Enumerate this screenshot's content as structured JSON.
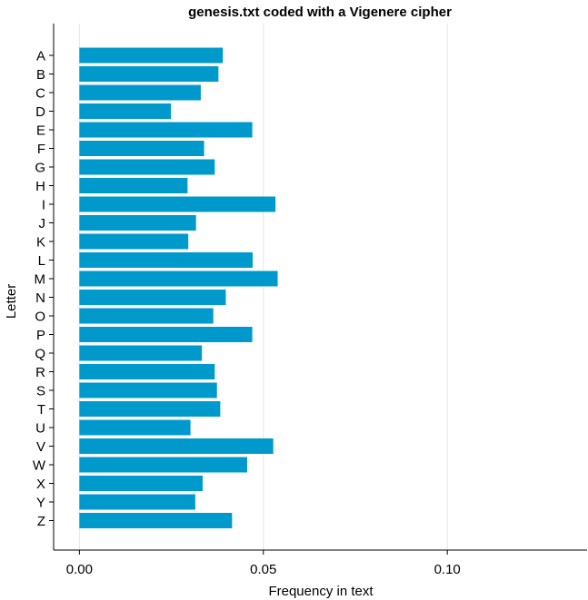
{
  "chart_data": {
    "type": "bar",
    "orientation": "horizontal",
    "title": "genesis.txt coded with a Vigenere cipher",
    "xlabel": "Frequency in text",
    "ylabel": "Letter",
    "xlim": [
      -0.007,
      0.138
    ],
    "xticks": [
      0.0,
      0.05,
      0.1
    ],
    "xtick_labels": [
      "0.00",
      "0.05",
      "0.10"
    ],
    "grid": "vertical",
    "bar_color": "#0099cc",
    "categories": [
      "A",
      "B",
      "C",
      "D",
      "E",
      "F",
      "G",
      "H",
      "I",
      "J",
      "K",
      "L",
      "M",
      "N",
      "O",
      "P",
      "Q",
      "R",
      "S",
      "T",
      "U",
      "V",
      "W",
      "X",
      "Y",
      "Z"
    ],
    "values": [
      0.039,
      0.0378,
      0.033,
      0.0249,
      0.047,
      0.0339,
      0.0368,
      0.0294,
      0.0533,
      0.0317,
      0.0296,
      0.0471,
      0.0539,
      0.0398,
      0.0364,
      0.047,
      0.0333,
      0.0368,
      0.0374,
      0.0383,
      0.0302,
      0.0527,
      0.0456,
      0.0335,
      0.0315,
      0.0415
    ]
  }
}
